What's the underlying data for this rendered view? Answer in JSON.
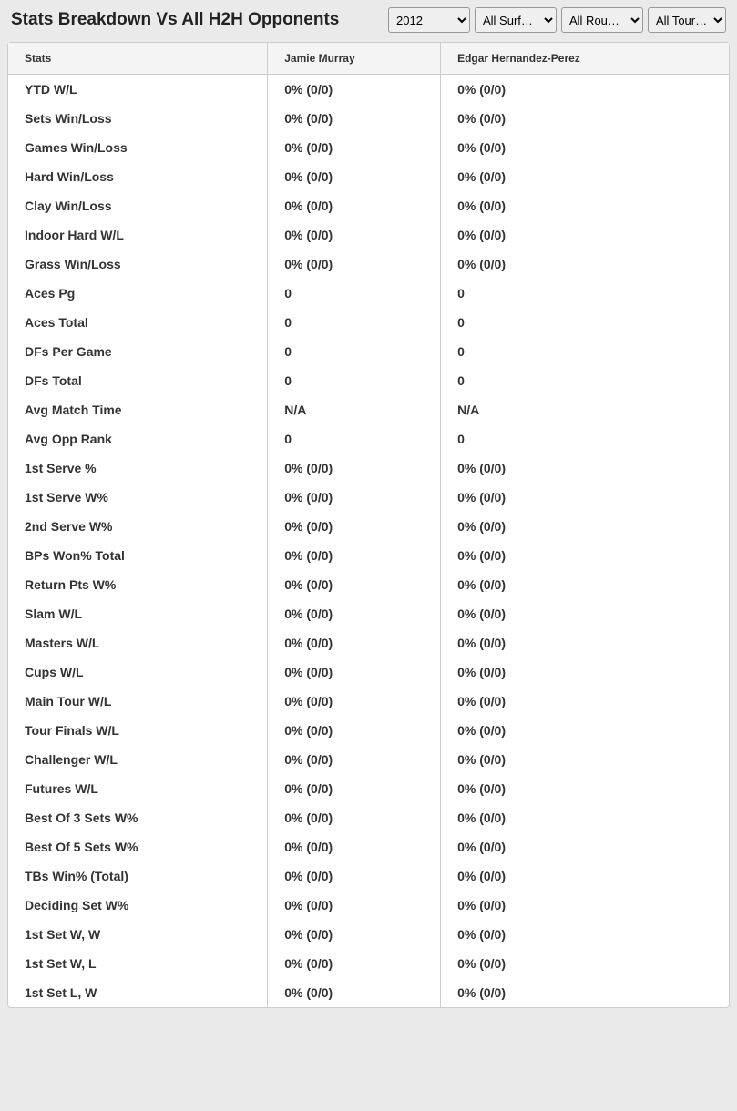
{
  "header": {
    "title": "Stats Breakdown Vs All H2H Opponents"
  },
  "filters": {
    "year": {
      "selected": "2012",
      "options": [
        "2012"
      ]
    },
    "surface": {
      "selected": "All Surf…",
      "options": [
        "All Surf…"
      ]
    },
    "round": {
      "selected": "All Rou…",
      "options": [
        "All Rou…"
      ]
    },
    "tour": {
      "selected": "All Tour…",
      "options": [
        "All Tour…"
      ]
    }
  },
  "table": {
    "columns": {
      "stats": "Stats",
      "player1": "Jamie Murray",
      "player2": "Edgar Hernandez-Perez"
    },
    "rows": [
      {
        "stat": "YTD W/L",
        "p1": "0% (0/0)",
        "p2": "0% (0/0)"
      },
      {
        "stat": "Sets Win/Loss",
        "p1": "0% (0/0)",
        "p2": "0% (0/0)"
      },
      {
        "stat": "Games Win/Loss",
        "p1": "0% (0/0)",
        "p2": "0% (0/0)"
      },
      {
        "stat": "Hard Win/Loss",
        "p1": "0% (0/0)",
        "p2": "0% (0/0)"
      },
      {
        "stat": "Clay Win/Loss",
        "p1": "0% (0/0)",
        "p2": "0% (0/0)"
      },
      {
        "stat": "Indoor Hard W/L",
        "p1": "0% (0/0)",
        "p2": "0% (0/0)"
      },
      {
        "stat": "Grass Win/Loss",
        "p1": "0% (0/0)",
        "p2": "0% (0/0)"
      },
      {
        "stat": "Aces Pg",
        "p1": "0",
        "p2": "0"
      },
      {
        "stat": "Aces Total",
        "p1": "0",
        "p2": "0"
      },
      {
        "stat": "DFs Per Game",
        "p1": "0",
        "p2": "0"
      },
      {
        "stat": "DFs Total",
        "p1": "0",
        "p2": "0"
      },
      {
        "stat": "Avg Match Time",
        "p1": "N/A",
        "p2": "N/A"
      },
      {
        "stat": "Avg Opp Rank",
        "p1": "0",
        "p2": "0"
      },
      {
        "stat": "1st Serve %",
        "p1": "0% (0/0)",
        "p2": "0% (0/0)"
      },
      {
        "stat": "1st Serve W%",
        "p1": "0% (0/0)",
        "p2": "0% (0/0)"
      },
      {
        "stat": "2nd Serve W%",
        "p1": "0% (0/0)",
        "p2": "0% (0/0)"
      },
      {
        "stat": "BPs Won% Total",
        "p1": "0% (0/0)",
        "p2": "0% (0/0)"
      },
      {
        "stat": "Return Pts W%",
        "p1": "0% (0/0)",
        "p2": "0% (0/0)"
      },
      {
        "stat": "Slam W/L",
        "p1": "0% (0/0)",
        "p2": "0% (0/0)"
      },
      {
        "stat": "Masters W/L",
        "p1": "0% (0/0)",
        "p2": "0% (0/0)"
      },
      {
        "stat": "Cups W/L",
        "p1": "0% (0/0)",
        "p2": "0% (0/0)"
      },
      {
        "stat": "Main Tour W/L",
        "p1": "0% (0/0)",
        "p2": "0% (0/0)"
      },
      {
        "stat": "Tour Finals W/L",
        "p1": "0% (0/0)",
        "p2": "0% (0/0)"
      },
      {
        "stat": "Challenger W/L",
        "p1": "0% (0/0)",
        "p2": "0% (0/0)"
      },
      {
        "stat": "Futures W/L",
        "p1": "0% (0/0)",
        "p2": "0% (0/0)"
      },
      {
        "stat": "Best Of 3 Sets W%",
        "p1": "0% (0/0)",
        "p2": "0% (0/0)"
      },
      {
        "stat": "Best Of 5 Sets W%",
        "p1": "0% (0/0)",
        "p2": "0% (0/0)"
      },
      {
        "stat": "TBs Win% (Total)",
        "p1": "0% (0/0)",
        "p2": "0% (0/0)"
      },
      {
        "stat": "Deciding Set W%",
        "p1": "0% (0/0)",
        "p2": "0% (0/0)"
      },
      {
        "stat": "1st Set W, W",
        "p1": "0% (0/0)",
        "p2": "0% (0/0)"
      },
      {
        "stat": "1st Set W, L",
        "p1": "0% (0/0)",
        "p2": "0% (0/0)"
      },
      {
        "stat": "1st Set L, W",
        "p1": "0% (0/0)",
        "p2": "0% (0/0)"
      }
    ],
    "styling": {
      "header_bg": "#f4f4f4",
      "border_color": "#cccccc",
      "body_bg": "#ffffff",
      "page_bg": "#eaeaea",
      "text_color": "#333333",
      "header_fontsize": 12,
      "cell_fontsize": 14,
      "title_fontsize": 19
    }
  }
}
